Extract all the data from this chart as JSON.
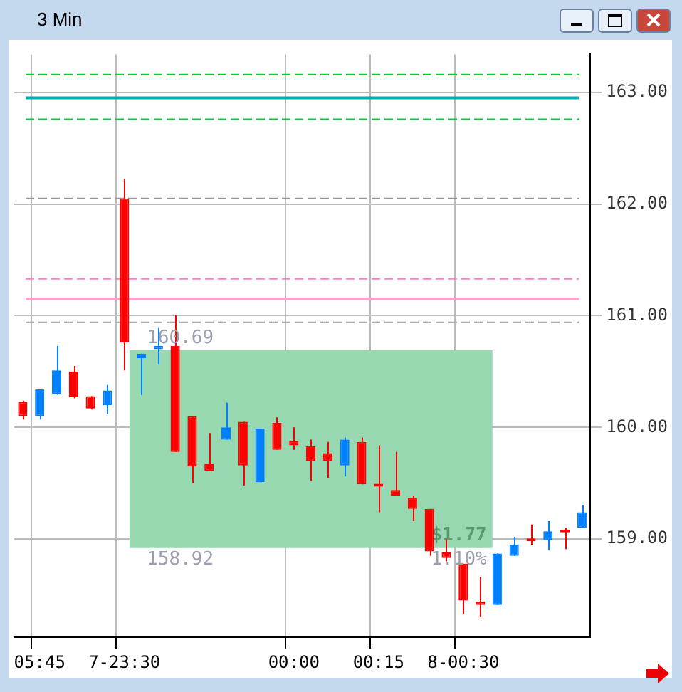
{
  "chart_data": {
    "type": "candlestick",
    "title": "3 Min",
    "categories": [
      null,
      "05:45",
      null,
      null,
      null,
      null,
      "7-23:30",
      null,
      null,
      null,
      null,
      null,
      null,
      null,
      null,
      null,
      "00:00",
      null,
      null,
      null,
      null,
      "00:15",
      null,
      null,
      null,
      null,
      "8-00:30",
      null,
      null,
      null,
      null,
      null,
      null,
      null
    ],
    "ohlc": [
      [
        160.23,
        160.24,
        160.07,
        160.1
      ],
      [
        160.1,
        160.34,
        160.07,
        160.34
      ],
      [
        160.3,
        160.73,
        160.29,
        160.51
      ],
      [
        160.5,
        160.55,
        160.26,
        160.27
      ],
      [
        160.28,
        160.28,
        160.16,
        160.17
      ],
      [
        160.2,
        160.38,
        160.12,
        160.33
      ],
      [
        162.05,
        162.22,
        160.51,
        160.76
      ],
      [
        160.62,
        160.66,
        160.29,
        160.66
      ],
      [
        160.7,
        160.89,
        160.57,
        160.73
      ],
      [
        160.73,
        161.01,
        159.78,
        159.78
      ],
      [
        160.1,
        160.1,
        159.5,
        159.65
      ],
      [
        159.67,
        159.95,
        159.61,
        159.61
      ],
      [
        159.89,
        160.22,
        159.89,
        160.0
      ],
      [
        160.05,
        160.05,
        159.48,
        159.66
      ],
      [
        159.51,
        159.99,
        159.51,
        159.99
      ],
      [
        160.04,
        160.09,
        159.8,
        159.8
      ],
      [
        159.88,
        160.0,
        159.8,
        159.84
      ],
      [
        159.83,
        159.89,
        159.52,
        159.7
      ],
      [
        159.77,
        159.87,
        159.55,
        159.7
      ],
      [
        159.66,
        159.91,
        159.56,
        159.89
      ],
      [
        159.87,
        159.91,
        159.49,
        159.49
      ],
      [
        159.49,
        159.84,
        159.24,
        159.47
      ],
      [
        159.44,
        159.78,
        159.39,
        159.39
      ],
      [
        159.37,
        159.39,
        159.16,
        159.27
      ],
      [
        159.27,
        159.27,
        158.85,
        158.89
      ],
      [
        158.88,
        159.0,
        158.8,
        158.83
      ],
      [
        158.78,
        158.78,
        158.33,
        158.45
      ],
      [
        158.44,
        158.66,
        158.3,
        158.41
      ],
      [
        158.41,
        158.87,
        158.41,
        158.87
      ],
      [
        158.85,
        159.02,
        158.85,
        158.95
      ],
      [
        159.0,
        159.13,
        158.95,
        158.98
      ],
      [
        158.99,
        159.16,
        158.9,
        159.07
      ],
      [
        159.08,
        159.1,
        158.91,
        159.06
      ],
      [
        159.1,
        159.3,
        159.1,
        159.24
      ]
    ],
    "colors": [
      "#ff0000",
      "#0080ff",
      "#0080ff",
      "#ff0000",
      "#ff0000",
      "#0080ff",
      "#ff0000",
      "#0080ff",
      "#0080ff",
      "#ff0000",
      "#ff0000",
      "#ff0000",
      "#0080ff",
      "#ff0000",
      "#0080ff",
      "#ff0000",
      "#ff0000",
      "#ff0000",
      "#ff0000",
      "#0080ff",
      "#ff0000",
      "#ff0000",
      "#ff0000",
      "#ff0000",
      "#ff0000",
      "#ff0000",
      "#ff0000",
      "#ff0000",
      "#0080ff",
      "#0080ff",
      "#ff0000",
      "#0080ff",
      "#ff0000",
      "#0080ff"
    ],
    "ylim": [
      158.12,
      163.34
    ],
    "yticks": [
      {
        "value": 159,
        "label": "159.00"
      },
      {
        "value": 160,
        "label": "160.00"
      },
      {
        "value": 161,
        "label": "161.00"
      },
      {
        "value": 162,
        "label": "162.00"
      },
      {
        "value": 163,
        "label": "163.00"
      }
    ],
    "grid": true,
    "legend": false,
    "ref_lines": [
      {
        "axis": "y",
        "value": 163.16,
        "color": "#00cc33",
        "line_style": "dashed"
      },
      {
        "axis": "y",
        "value": 162.95,
        "color": "#00b0b0",
        "line_style": "solid"
      },
      {
        "axis": "y",
        "value": 162.76,
        "color": "#00cc33",
        "line_style": "dashed"
      },
      {
        "axis": "y",
        "value": 162.05,
        "color": "#999999",
        "line_style": "dashed"
      },
      {
        "axis": "y",
        "value": 161.33,
        "color": "#ff80c0",
        "line_style": "dashed"
      },
      {
        "axis": "y",
        "value": 161.15,
        "color": "#ffa0d0",
        "line_style": "solid"
      },
      {
        "axis": "y",
        "value": 160.94,
        "color": "#aaaaaa",
        "line_style": "dashed"
      }
    ],
    "bands": [
      {
        "axis": "y",
        "from": 158.92,
        "to": 160.69,
        "label": "$1.77",
        "color": "#98d8b0"
      }
    ],
    "annotations": [
      {
        "text": "160.69",
        "y": 160.69
      },
      {
        "text": "158.92",
        "y": 158.92
      },
      "1.10%"
    ]
  }
}
